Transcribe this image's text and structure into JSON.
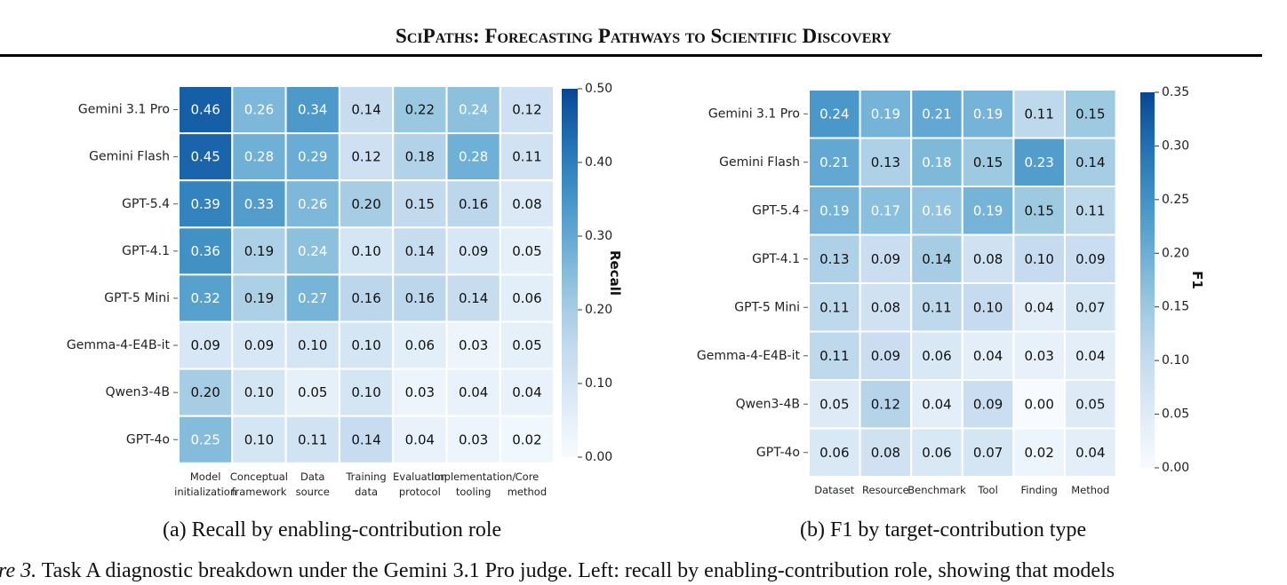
{
  "header": {
    "title": "SciPaths: Forecasting Pathways to Scientific Discovery"
  },
  "chart_data": [
    {
      "type": "heatmap",
      "rows": [
        "Gemini 3.1 Pro",
        "Gemini Flash",
        "GPT-5.4",
        "GPT-4.1",
        "GPT-5 Mini",
        "Gemma-4-E4B-it",
        "Qwen3-4B",
        "GPT-4o"
      ],
      "columns": [
        [
          "Model",
          "initialization"
        ],
        [
          "Conceptual",
          "framework"
        ],
        [
          "Data",
          "source"
        ],
        [
          "Training",
          "data"
        ],
        [
          "Evaluation",
          "protocol"
        ],
        [
          "Implementation/",
          "tooling"
        ],
        [
          "Core",
          "method"
        ]
      ],
      "values": [
        [
          0.46,
          0.26,
          0.34,
          0.14,
          0.22,
          0.24,
          0.12
        ],
        [
          0.45,
          0.28,
          0.29,
          0.12,
          0.18,
          0.28,
          0.11
        ],
        [
          0.39,
          0.33,
          0.26,
          0.2,
          0.15,
          0.16,
          0.08
        ],
        [
          0.36,
          0.19,
          0.24,
          0.1,
          0.14,
          0.09,
          0.05
        ],
        [
          0.32,
          0.19,
          0.27,
          0.16,
          0.16,
          0.14,
          0.06
        ],
        [
          0.09,
          0.09,
          0.1,
          0.1,
          0.06,
          0.03,
          0.05
        ],
        [
          0.2,
          0.1,
          0.05,
          0.1,
          0.03,
          0.04,
          0.04
        ],
        [
          0.25,
          0.1,
          0.11,
          0.14,
          0.04,
          0.03,
          0.02
        ]
      ],
      "colorbar": {
        "label": "Recall",
        "range": [
          0.0,
          0.5
        ],
        "ticks": [
          "0.00",
          "0.10",
          "0.20",
          "0.30",
          "0.40",
          "0.50"
        ]
      },
      "subcaption": "(a) Recall by enabling-contribution role"
    },
    {
      "type": "heatmap",
      "rows": [
        "Gemini 3.1 Pro",
        "Gemini Flash",
        "GPT-5.4",
        "GPT-4.1",
        "GPT-5 Mini",
        "Gemma-4-E4B-it",
        "Qwen3-4B",
        "GPT-4o"
      ],
      "columns": [
        [
          "Dataset"
        ],
        [
          "Resource"
        ],
        [
          "Benchmark"
        ],
        [
          "Tool"
        ],
        [
          "Finding"
        ],
        [
          "Method"
        ]
      ],
      "values": [
        [
          0.24,
          0.19,
          0.21,
          0.19,
          0.11,
          0.15
        ],
        [
          0.21,
          0.13,
          0.18,
          0.15,
          0.23,
          0.14
        ],
        [
          0.19,
          0.17,
          0.16,
          0.19,
          0.15,
          0.11
        ],
        [
          0.13,
          0.09,
          0.14,
          0.08,
          0.1,
          0.09
        ],
        [
          0.11,
          0.08,
          0.11,
          0.1,
          0.04,
          0.07
        ],
        [
          0.11,
          0.09,
          0.06,
          0.04,
          0.03,
          0.04
        ],
        [
          0.05,
          0.12,
          0.04,
          0.09,
          0.0,
          0.05
        ],
        [
          0.06,
          0.08,
          0.06,
          0.07,
          0.02,
          0.04
        ]
      ],
      "colorbar": {
        "label": "F1",
        "range": [
          0.0,
          0.35
        ],
        "ticks": [
          "0.00",
          "0.05",
          "0.10",
          "0.15",
          "0.20",
          "0.25",
          "0.30",
          "0.35"
        ]
      },
      "subcaption": "(b) F1 by target-contribution type"
    }
  ],
  "caption": {
    "label": "ure 3.",
    "text": "Task A diagnostic breakdown under the Gemini 3.1 Pro judge. Left: recall by enabling-contribution role, showing that models"
  }
}
